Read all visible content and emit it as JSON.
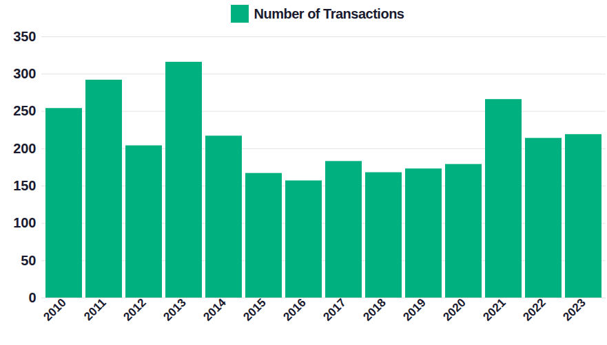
{
  "chart_data": {
    "type": "bar",
    "categories": [
      "2010",
      "2011",
      "2012",
      "2013",
      "2014",
      "2015",
      "2016",
      "2017",
      "2018",
      "2019",
      "2020",
      "2021",
      "2022",
      "2023"
    ],
    "series": [
      {
        "name": "Number of Transactions",
        "color": "#00b07e",
        "values": [
          254,
          292,
          204,
          316,
          217,
          167,
          157,
          183,
          168,
          173,
          179,
          266,
          214,
          219
        ]
      }
    ],
    "ylim": [
      0,
      350
    ],
    "yticks": [
      0,
      50,
      100,
      150,
      200,
      250,
      300,
      350
    ],
    "grid": true,
    "legend": "top"
  }
}
